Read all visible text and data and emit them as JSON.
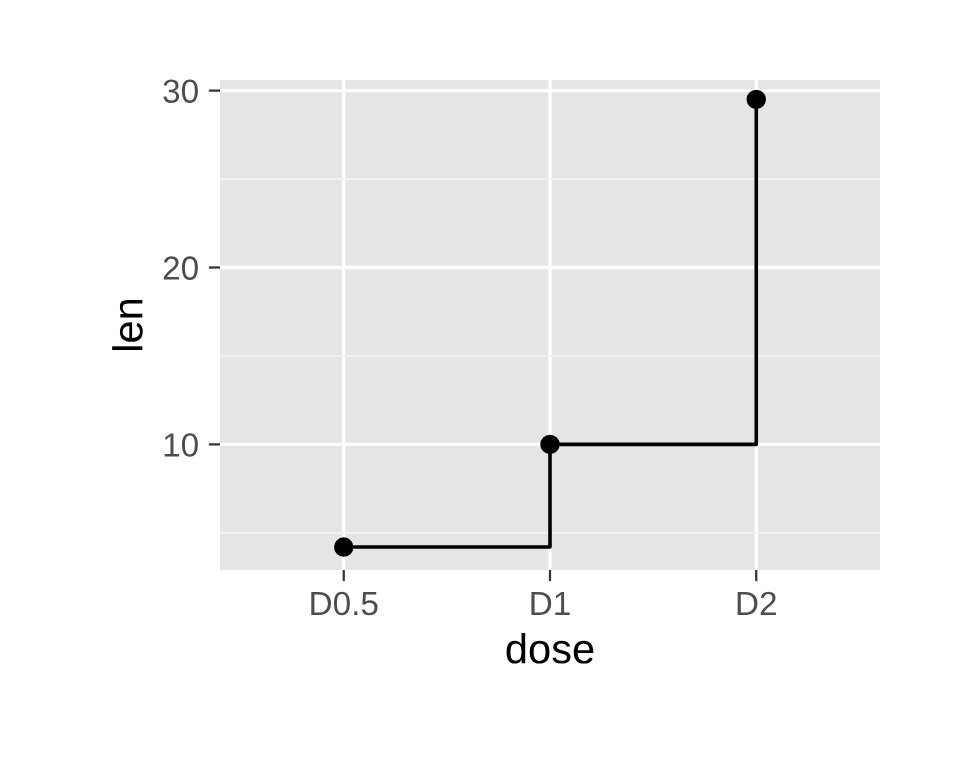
{
  "chart_data": {
    "type": "step",
    "xlabel": "dose",
    "ylabel": "len",
    "categories": [
      "D0.5",
      "D1",
      "D2"
    ],
    "series": [
      {
        "color": "#000000",
        "values": [
          4.2,
          10,
          29.5
        ]
      }
    ],
    "ylim": [
      2.9,
      30.6
    ],
    "yticks": [
      10,
      20,
      30
    ],
    "grid": true,
    "marker": "circle",
    "line_style": "solid"
  }
}
